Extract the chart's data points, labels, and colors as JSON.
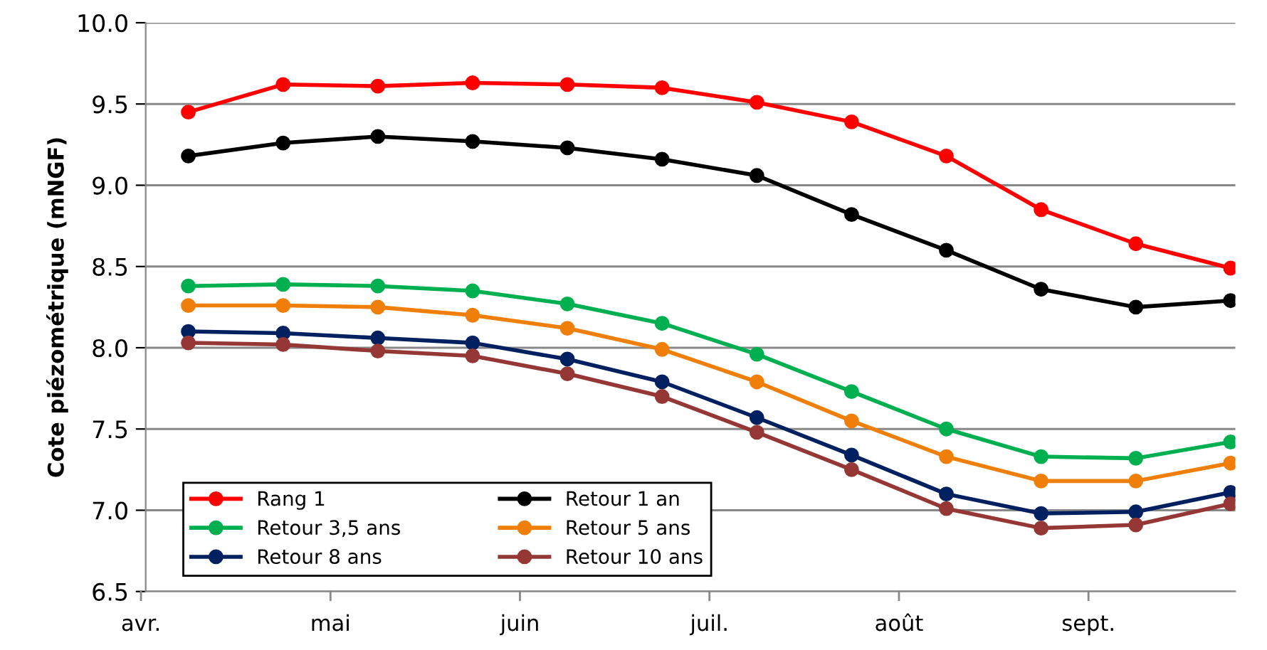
{
  "chart_data": {
    "type": "line",
    "ylabel": "Cote piézométrique (mNGF)",
    "categories": [
      null,
      null,
      null,
      null,
      null,
      null,
      null,
      null,
      null,
      null,
      null,
      null
    ],
    "annotations": [
      "avr.",
      "mai",
      "juin",
      "juil.",
      "août",
      "sept."
    ],
    "ylim": [
      6.5,
      10.0
    ],
    "yticks": [
      {
        "value": 6.5,
        "label": "6.5"
      },
      {
        "value": 7.0,
        "label": "7.0"
      },
      {
        "value": 7.5,
        "label": "7.5"
      },
      {
        "value": 8.0,
        "label": "8.0"
      },
      {
        "value": 8.5,
        "label": "8.5"
      },
      {
        "value": 9.0,
        "label": "9.0"
      },
      {
        "value": 9.5,
        "label": "9.5"
      },
      {
        "value": 10.0,
        "label": "10.0"
      }
    ],
    "grid": "y",
    "legend": "bottom left",
    "marker": "circle",
    "line_style": "solid",
    "series": [
      {
        "name": "Rang 1",
        "color": "#ff0000",
        "values": [
          9.45,
          9.62,
          9.61,
          9.63,
          9.62,
          9.6,
          9.51,
          9.39,
          9.18,
          8.85,
          8.64,
          8.49
        ]
      },
      {
        "name": "Retour 1 an",
        "color": "#000000",
        "values": [
          9.18,
          9.26,
          9.3,
          9.27,
          9.23,
          9.16,
          9.06,
          8.82,
          8.6,
          8.36,
          8.25,
          8.29
        ]
      },
      {
        "name": "Retour 3,5 ans",
        "color": "#00b050",
        "values": [
          8.38,
          8.39,
          8.38,
          8.35,
          8.27,
          8.15,
          7.96,
          7.73,
          7.5,
          7.33,
          7.32,
          7.42
        ]
      },
      {
        "name": "Retour 5 ans",
        "color": "#f07f09",
        "values": [
          8.26,
          8.26,
          8.25,
          8.2,
          8.12,
          7.99,
          7.79,
          7.55,
          7.33,
          7.18,
          7.18,
          7.29
        ]
      },
      {
        "name": "Retour 8 ans",
        "color": "#002060",
        "values": [
          8.1,
          8.09,
          8.06,
          8.03,
          7.93,
          7.79,
          7.57,
          7.34,
          7.1,
          6.98,
          6.99,
          7.11
        ]
      },
      {
        "name": "Retour 10 ans",
        "color": "#953735",
        "values": [
          8.03,
          8.02,
          7.98,
          7.95,
          7.84,
          7.7,
          7.48,
          7.25,
          7.01,
          6.89,
          6.91,
          7.04
        ]
      }
    ]
  }
}
